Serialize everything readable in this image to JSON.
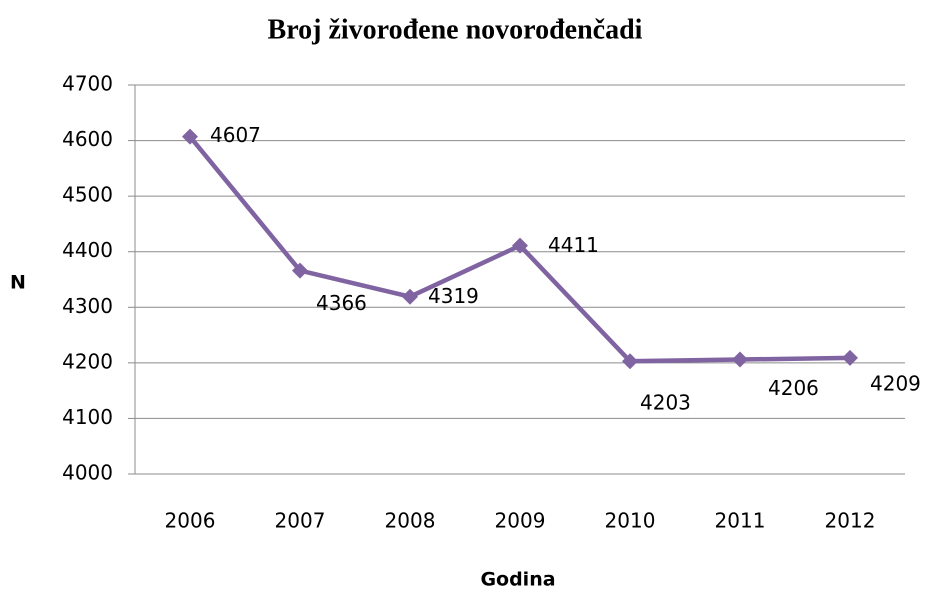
{
  "chart_data": {
    "type": "line",
    "title": "Broj živorođene novorođenčadi",
    "x_label": "Godina",
    "y_label": "N",
    "categories": [
      "2006",
      "2007",
      "2008",
      "2009",
      "2010",
      "2011",
      "2012"
    ],
    "series": [
      {
        "name": "N",
        "color": "#8064a2",
        "values": [
          4607,
          4366,
          4319,
          4411,
          4203,
          4206,
          4209
        ]
      }
    ],
    "ylim": [
      4000,
      4700
    ],
    "yticks": [
      4000,
      4100,
      4200,
      4300,
      4400,
      4500,
      4600,
      4700
    ],
    "grid": true
  }
}
